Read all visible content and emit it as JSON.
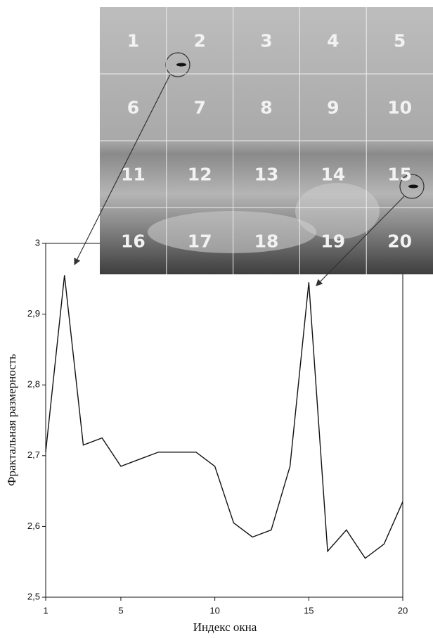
{
  "chart_data": {
    "type": "line",
    "x_label": "Индекс окна",
    "y_label": "Фрактальная размерность",
    "x": [
      1,
      2,
      3,
      4,
      5,
      6,
      7,
      8,
      9,
      10,
      11,
      12,
      13,
      14,
      15,
      16,
      17,
      18,
      19,
      20
    ],
    "series": [
      {
        "color": "#111111",
        "values": [
          2.705,
          2.955,
          2.715,
          2.725,
          2.685,
          2.695,
          2.705,
          2.705,
          2.705,
          2.685,
          2.605,
          2.585,
          2.595,
          2.685,
          2.945,
          2.565,
          2.595,
          2.555,
          2.575,
          2.635
        ]
      }
    ],
    "xlim": [
      1,
      20
    ],
    "xticks": [
      1,
      5,
      10,
      15,
      20
    ],
    "ylim": [
      2.5,
      3
    ],
    "yticks": [
      {
        "value": 2.5,
        "label": "2,5"
      },
      {
        "value": 2.6,
        "label": "2,6"
      },
      {
        "value": 2.7,
        "label": "2,7"
      },
      {
        "value": 2.8,
        "label": "2,8"
      },
      {
        "value": 2.9,
        "label": "2,9"
      },
      3
    ],
    "grid": false,
    "window_labels": [
      "1",
      "2",
      "3",
      "4",
      "5",
      "6",
      "7",
      "8",
      "9",
      "10",
      "11",
      "12",
      "13",
      "14",
      "15",
      "16",
      "17",
      "18",
      "19",
      "20"
    ]
  }
}
